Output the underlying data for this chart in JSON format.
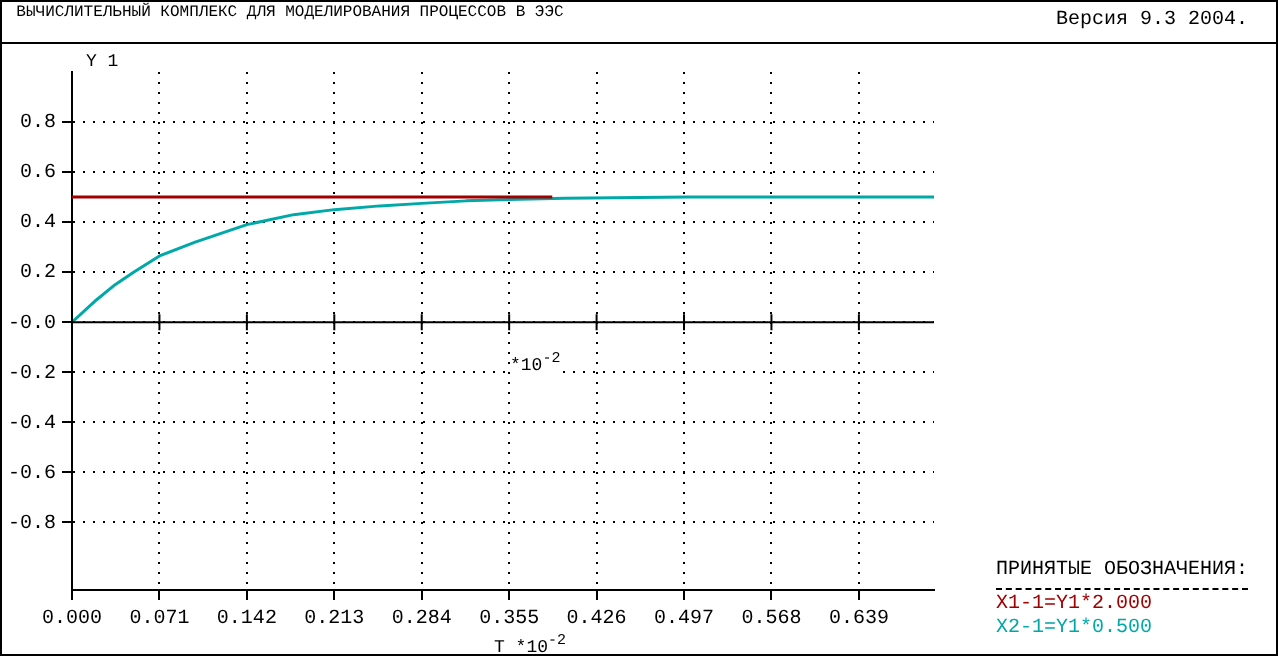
{
  "chart_data": {
    "type": "line",
    "title": "ВЫЧИСЛИТЕЛЬНЫЙ КОМПЛЕКС ДЛЯ МОДЕЛИРОВАНИЯ ПРОЦЕССОВ В ЭЭС",
    "subtitle": "Версия 9.3  2004.",
    "xlabel": "T *10$^{-2}$",
    "ylabel": "Y 1",
    "legend_title": "ПРИНЯТЫЕ ОБОЗНАЧЕНИЯ:",
    "annotations": [
      "*10$^{-2}$"
    ],
    "series": [
      {
        "name": "X1-1=Y1*2.000",
        "color": "#a00000",
        "x": [
          0,
          0.39
        ],
        "values": [
          0.5,
          0.5
        ]
      },
      {
        "name": "X2-1=Y1*0.500",
        "color": "#00a8a8",
        "x": [
          0,
          0.02,
          0.035,
          0.05,
          0.071,
          0.1,
          0.142,
          0.18,
          0.213,
          0.25,
          0.284,
          0.32,
          0.355,
          0.4,
          0.5,
          0.7
        ],
        "values": [
          0,
          0.09,
          0.15,
          0.2,
          0.265,
          0.32,
          0.39,
          0.43,
          0.45,
          0.465,
          0.475,
          0.485,
          0.49,
          0.495,
          0.5,
          0.5
        ]
      }
    ],
    "xlim": [
      0,
      0.7
    ],
    "xticks": [
      {
        "value": 0,
        "label": "0.000"
      },
      0.071,
      0.142,
      0.213,
      0.284,
      0.355,
      0.426,
      0.497,
      0.568,
      0.639
    ],
    "ylim": [
      -1.07,
      1.0
    ],
    "yticks": [
      -0.8,
      -0.6,
      -0.4,
      -0.2,
      {
        "value": 0,
        "label": "-0.0"
      },
      0.2,
      0.4,
      0.6,
      0.8
    ],
    "grid": true,
    "legend": "bottom right",
    "marker": "none",
    "line_style": "solid"
  }
}
